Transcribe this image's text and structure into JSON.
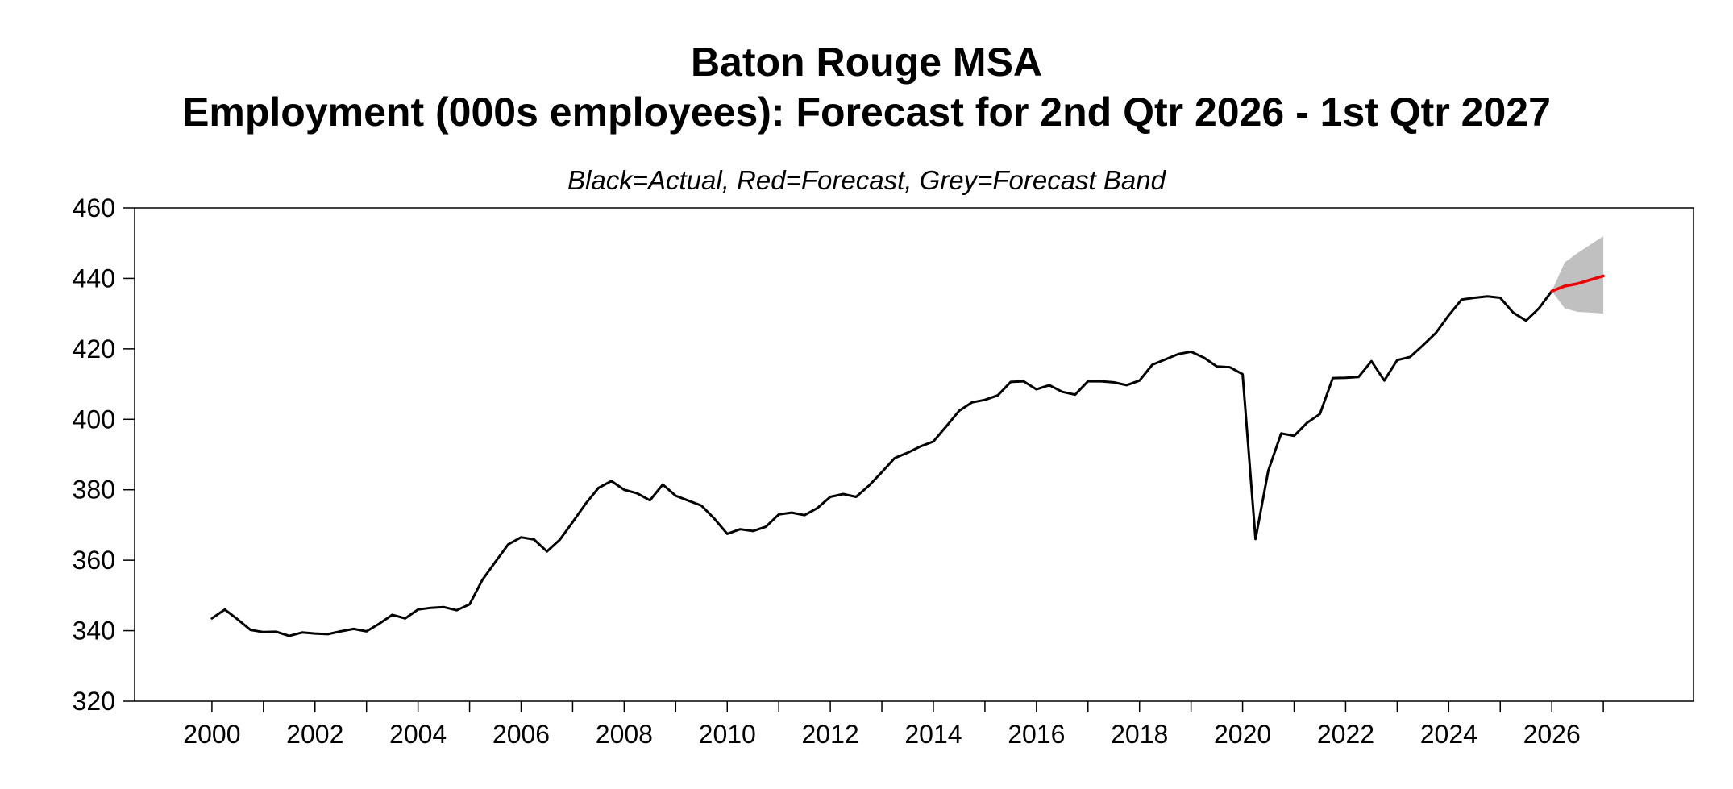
{
  "chart_data": {
    "type": "line",
    "title": "Baton Rouge MSA",
    "subtitle_title": "Employment (000s employees): Forecast for 2nd Qtr 2026 - 1st Qtr 2027",
    "legend_note": "Black=Actual, Red=Forecast, Grey=Forecast Band",
    "xlabel": "",
    "ylabel": "",
    "ylim": [
      320,
      460
    ],
    "xlim": [
      1998.5,
      2028.75
    ],
    "y_ticks": [
      "320",
      "340",
      "360",
      "380",
      "400",
      "420",
      "440",
      "460"
    ],
    "x_tick_labels": [
      "2000",
      "2002",
      "2004",
      "2006",
      "2008",
      "2010",
      "2012",
      "2014",
      "2016",
      "2018",
      "2020",
      "2022",
      "2024",
      "2026"
    ],
    "grid": false,
    "colors": {
      "actual": "#000000",
      "forecast": "#ee0000",
      "band": "#c0c0c0"
    },
    "series": [
      {
        "role": "actual",
        "x": [
          2000.0,
          2000.25,
          2000.5,
          2000.75,
          2001.0,
          2001.25,
          2001.5,
          2001.75,
          2002.0,
          2002.25,
          2002.5,
          2002.75,
          2003.0,
          2003.25,
          2003.5,
          2003.75,
          2004.0,
          2004.25,
          2004.5,
          2004.75,
          2005.0,
          2005.25,
          2005.5,
          2005.75,
          2006.0,
          2006.25,
          2006.5,
          2006.75,
          2007.0,
          2007.25,
          2007.5,
          2007.75,
          2008.0,
          2008.25,
          2008.5,
          2008.75,
          2009.0,
          2009.25,
          2009.5,
          2009.75,
          2010.0,
          2010.25,
          2010.5,
          2010.75,
          2011.0,
          2011.25,
          2011.5,
          2011.75,
          2012.0,
          2012.25,
          2012.5,
          2012.75,
          2013.0,
          2013.25,
          2013.5,
          2013.75,
          2014.0,
          2014.25,
          2014.5,
          2014.75,
          2015.0,
          2015.25,
          2015.5,
          2015.75,
          2016.0,
          2016.25,
          2016.5,
          2016.75,
          2017.0,
          2017.25,
          2017.5,
          2017.75,
          2018.0,
          2018.25,
          2018.5,
          2018.75,
          2019.0,
          2019.25,
          2019.5,
          2019.75,
          2020.0,
          2020.25,
          2020.5,
          2020.75,
          2021.0,
          2021.25,
          2021.5,
          2021.75,
          2022.0,
          2022.25,
          2022.5,
          2022.75,
          2023.0,
          2023.25,
          2023.5,
          2023.75,
          2024.0,
          2024.25,
          2024.5,
          2024.75,
          2025.0,
          2025.25,
          2025.5,
          2025.75,
          2026.0
        ],
        "values": [
          343.5,
          346.0,
          343.2,
          340.2,
          339.6,
          339.7,
          338.5,
          339.5,
          339.2,
          339.0,
          339.8,
          340.5,
          339.8,
          342.0,
          344.5,
          343.5,
          346.0,
          346.5,
          346.7,
          345.8,
          347.5,
          354.5,
          359.5,
          364.5,
          366.5,
          365.9,
          362.5,
          365.8,
          370.8,
          376.0,
          380.5,
          382.5,
          380.0,
          379.0,
          377.0,
          381.5,
          378.3,
          376.9,
          375.5,
          371.8,
          367.5,
          368.8,
          368.3,
          369.5,
          373.0,
          373.5,
          372.8,
          374.8,
          378.0,
          378.8,
          378.0,
          381.2,
          385.0,
          389.0,
          390.5,
          392.3,
          393.7,
          398.0,
          402.4,
          404.8,
          405.5,
          406.8,
          410.6,
          410.8,
          408.5,
          409.7,
          407.8,
          407.0,
          410.8,
          410.8,
          410.5,
          409.7,
          411.0,
          415.5,
          417.0,
          418.5,
          419.2,
          417.5,
          415.0,
          414.8,
          412.8,
          366.0,
          385.5,
          396.0,
          395.3,
          399.0,
          401.5,
          411.7,
          411.8,
          412.0,
          416.5,
          411.0,
          416.8,
          417.7,
          421.0,
          424.5,
          429.5,
          434.0,
          434.5,
          434.9,
          434.5,
          430.3,
          428.0,
          431.5,
          436.4
        ]
      },
      {
        "role": "forecast",
        "x": [
          2026.0,
          2026.25,
          2026.5,
          2026.75,
          2027.0
        ],
        "values": [
          436.4,
          437.8,
          438.5,
          439.6,
          440.7
        ]
      }
    ],
    "band": {
      "x": [
        2026.0,
        2026.25,
        2026.5,
        2026.75,
        2027.0
      ],
      "upper": [
        436.4,
        444.5,
        447.2,
        449.6,
        452.0
      ],
      "lower": [
        436.4,
        431.5,
        430.5,
        430.3,
        430.0
      ]
    }
  }
}
